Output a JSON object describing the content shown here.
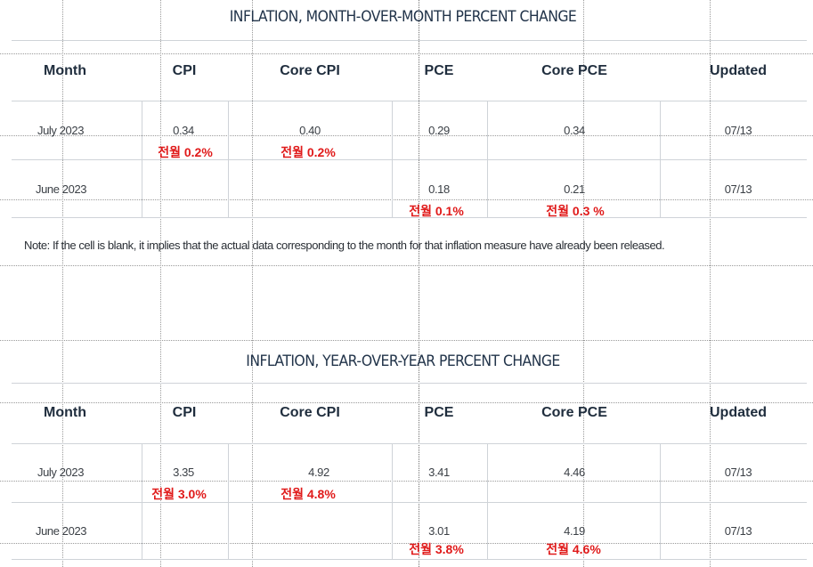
{
  "mom": {
    "title": "INFLATION, MONTH-OVER-MONTH PERCENT CHANGE",
    "headers": [
      "Month",
      "CPI",
      "Core CPI",
      "PCE",
      "Core PCE",
      "Updated"
    ],
    "rows": [
      {
        "month": "July 2023",
        "cpi": "0.34",
        "core_cpi": "0.40",
        "pce": "0.29",
        "core_pce": "0.34",
        "updated": "07/13",
        "cpi_prev": "전월 0.2%",
        "core_cpi_prev": "전월 0.2%"
      },
      {
        "month": "June 2023",
        "cpi": "",
        "core_cpi": "",
        "pce": "0.18",
        "core_pce": "0.21",
        "updated": "07/13",
        "pce_prev": "전월 0.1%",
        "core_pce_prev": "전월 0.3 %"
      }
    ],
    "note": "Note: If the cell is blank, it implies that the actual data corresponding to the month for that inflation measure have already been released."
  },
  "yoy": {
    "title": "INFLATION, YEAR-OVER-YEAR PERCENT CHANGE",
    "headers": [
      "Month",
      "CPI",
      "Core CPI",
      "PCE",
      "Core PCE",
      "Updated"
    ],
    "rows": [
      {
        "month": "July 2023",
        "cpi": "3.35",
        "core_cpi": "4.92",
        "pce": "3.41",
        "core_pce": "4.46",
        "updated": "07/13",
        "cpi_prev": "전월 3.0%",
        "core_cpi_prev": "전월 4.8%"
      },
      {
        "month": "June 2023",
        "cpi": "",
        "core_cpi": "",
        "pce": "3.01",
        "core_pce": "4.19",
        "updated": "07/13",
        "pce_prev": "전월 3.8%",
        "core_pce_prev": "전월 4.6%"
      }
    ]
  }
}
